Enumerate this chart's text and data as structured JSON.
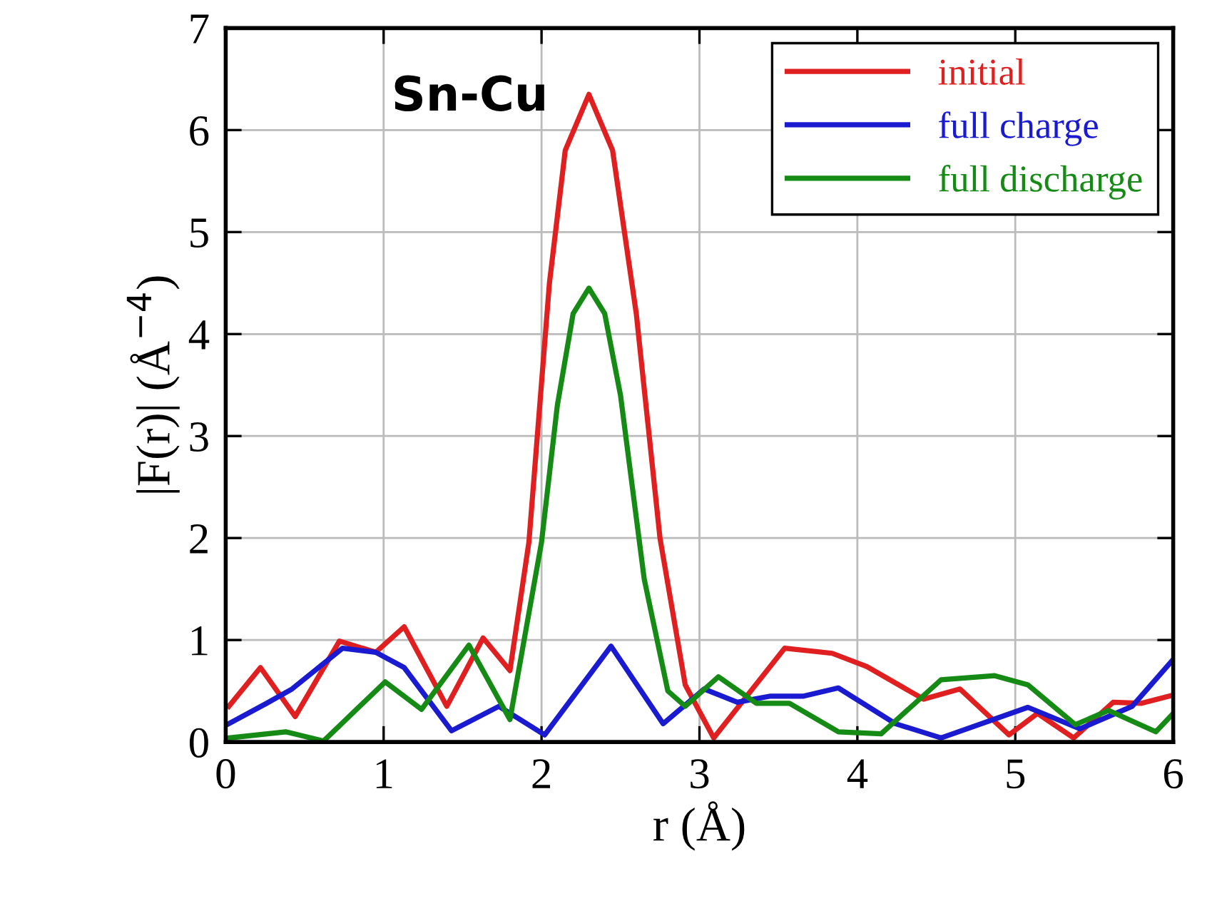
{
  "chart_data": {
    "type": "line",
    "xlabel": "r (Å)",
    "ylabel": "|F(r)| (Å$^{−4}$)",
    "annotations": [
      "Sn-Cu"
    ],
    "xlim": [
      0,
      6
    ],
    "xticks": [
      0,
      1,
      2,
      3,
      4,
      5,
      6
    ],
    "ylim": [
      0,
      7
    ],
    "yticks": [
      0,
      1,
      2,
      3,
      4,
      5,
      6,
      7
    ],
    "grid": true,
    "legend": "top right",
    "marker": "none",
    "line_style": "solid",
    "series": [
      {
        "name": "initial",
        "color": "#e02020",
        "x": [
          0.02,
          0.22,
          0.44,
          0.72,
          0.95,
          1.13,
          1.4,
          1.63,
          1.8,
          1.92,
          2.05,
          2.15,
          2.3,
          2.45,
          2.6,
          2.75,
          2.91,
          3.09,
          3.54,
          3.84,
          4.06,
          4.42,
          4.65,
          4.96,
          5.14,
          5.37,
          5.62,
          5.8,
          6.0
        ],
        "values": [
          0.35,
          0.73,
          0.25,
          0.99,
          0.88,
          1.13,
          0.35,
          1.02,
          0.7,
          1.96,
          4.5,
          5.8,
          6.35,
          5.8,
          4.2,
          2.0,
          0.56,
          0.04,
          0.92,
          0.87,
          0.74,
          0.42,
          0.52,
          0.07,
          0.28,
          0.04,
          0.39,
          0.38,
          0.46
        ]
      },
      {
        "name": "full charge",
        "color": "#1a1ad0",
        "x": [
          0.02,
          0.26,
          0.42,
          0.74,
          0.95,
          1.13,
          1.43,
          1.73,
          2.02,
          2.44,
          2.77,
          3.03,
          3.24,
          3.45,
          3.66,
          3.88,
          4.24,
          4.53,
          5.08,
          5.41,
          5.74,
          6.0
        ],
        "values": [
          0.18,
          0.38,
          0.52,
          0.92,
          0.88,
          0.73,
          0.11,
          0.35,
          0.07,
          0.94,
          0.18,
          0.52,
          0.39,
          0.45,
          0.45,
          0.53,
          0.18,
          0.04,
          0.34,
          0.13,
          0.35,
          0.81
        ]
      },
      {
        "name": "full discharge",
        "color": "#158a15",
        "x": [
          0.02,
          0.38,
          0.62,
          1.01,
          1.24,
          1.54,
          1.8,
          2.0,
          2.1,
          2.2,
          2.3,
          2.4,
          2.5,
          2.65,
          2.8,
          2.91,
          3.12,
          3.36,
          3.57,
          3.88,
          4.15,
          4.53,
          4.87,
          5.08,
          5.38,
          5.59,
          5.89,
          6.0
        ],
        "values": [
          0.04,
          0.1,
          0.01,
          0.59,
          0.32,
          0.95,
          0.22,
          1.96,
          3.3,
          4.2,
          4.45,
          4.2,
          3.4,
          1.6,
          0.5,
          0.35,
          0.64,
          0.38,
          0.38,
          0.1,
          0.08,
          0.61,
          0.65,
          0.56,
          0.17,
          0.31,
          0.1,
          0.28
        ]
      }
    ]
  }
}
